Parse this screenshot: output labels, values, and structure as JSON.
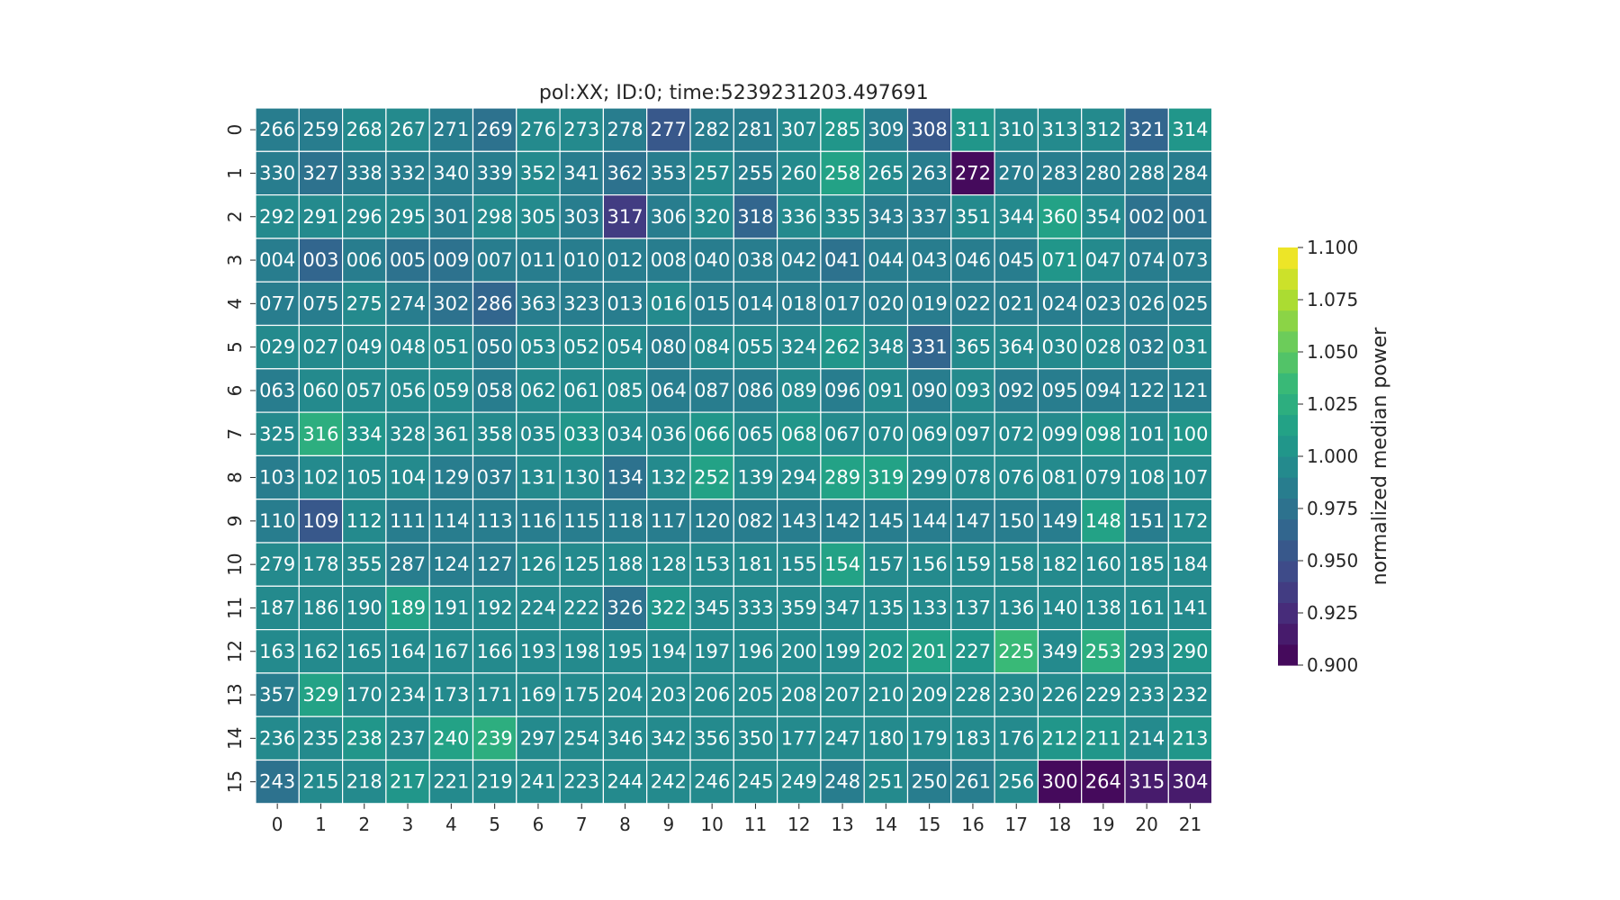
{
  "chart_data": {
    "type": "heatmap",
    "title": "pol:XX; ID:0; time:5239231203.497691",
    "x_tick_labels": [
      "0",
      "1",
      "2",
      "3",
      "4",
      "5",
      "6",
      "7",
      "8",
      "9",
      "10",
      "11",
      "12",
      "13",
      "14",
      "15",
      "16",
      "17",
      "18",
      "19",
      "20",
      "21"
    ],
    "y_tick_labels": [
      "0",
      "1",
      "2",
      "3",
      "4",
      "5",
      "6",
      "7",
      "8",
      "9",
      "10",
      "11",
      "12",
      "13",
      "14",
      "15"
    ],
    "annotations": [
      [
        "266",
        "259",
        "268",
        "267",
        "271",
        "269",
        "276",
        "273",
        "278",
        "277",
        "282",
        "281",
        "307",
        "285",
        "309",
        "308",
        "311",
        "310",
        "313",
        "312",
        "321",
        "314"
      ],
      [
        "330",
        "327",
        "338",
        "332",
        "340",
        "339",
        "352",
        "341",
        "362",
        "353",
        "257",
        "255",
        "260",
        "258",
        "265",
        "263",
        "272",
        "270",
        "283",
        "280",
        "288",
        "284"
      ],
      [
        "292",
        "291",
        "296",
        "295",
        "301",
        "298",
        "305",
        "303",
        "317",
        "306",
        "320",
        "318",
        "336",
        "335",
        "343",
        "337",
        "351",
        "344",
        "360",
        "354",
        "002",
        "001"
      ],
      [
        "004",
        "003",
        "006",
        "005",
        "009",
        "007",
        "011",
        "010",
        "012",
        "008",
        "040",
        "038",
        "042",
        "041",
        "044",
        "043",
        "046",
        "045",
        "071",
        "047",
        "074",
        "073"
      ],
      [
        "077",
        "075",
        "275",
        "274",
        "302",
        "286",
        "363",
        "323",
        "013",
        "016",
        "015",
        "014",
        "018",
        "017",
        "020",
        "019",
        "022",
        "021",
        "024",
        "023",
        "026",
        "025"
      ],
      [
        "029",
        "027",
        "049",
        "048",
        "051",
        "050",
        "053",
        "052",
        "054",
        "080",
        "084",
        "055",
        "324",
        "262",
        "348",
        "331",
        "365",
        "364",
        "030",
        "028",
        "032",
        "031"
      ],
      [
        "063",
        "060",
        "057",
        "056",
        "059",
        "058",
        "062",
        "061",
        "085",
        "064",
        "087",
        "086",
        "089",
        "096",
        "091",
        "090",
        "093",
        "092",
        "095",
        "094",
        "122",
        "121"
      ],
      [
        "325",
        "316",
        "334",
        "328",
        "361",
        "358",
        "035",
        "033",
        "034",
        "036",
        "066",
        "065",
        "068",
        "067",
        "070",
        "069",
        "097",
        "072",
        "099",
        "098",
        "101",
        "100"
      ],
      [
        "103",
        "102",
        "105",
        "104",
        "129",
        "037",
        "131",
        "130",
        "134",
        "132",
        "252",
        "139",
        "294",
        "289",
        "319",
        "299",
        "078",
        "076",
        "081",
        "079",
        "108",
        "107"
      ],
      [
        "110",
        "109",
        "112",
        "111",
        "114",
        "113",
        "116",
        "115",
        "118",
        "117",
        "120",
        "082",
        "143",
        "142",
        "145",
        "144",
        "147",
        "150",
        "149",
        "148",
        "151",
        "172"
      ],
      [
        "279",
        "178",
        "355",
        "287",
        "124",
        "127",
        "126",
        "125",
        "188",
        "128",
        "153",
        "181",
        "155",
        "154",
        "157",
        "156",
        "159",
        "158",
        "182",
        "160",
        "185",
        "184"
      ],
      [
        "187",
        "186",
        "190",
        "189",
        "191",
        "192",
        "224",
        "222",
        "326",
        "322",
        "345",
        "333",
        "359",
        "347",
        "135",
        "133",
        "137",
        "136",
        "140",
        "138",
        "161",
        "141"
      ],
      [
        "163",
        "162",
        "165",
        "164",
        "167",
        "166",
        "193",
        "198",
        "195",
        "194",
        "197",
        "196",
        "200",
        "199",
        "202",
        "201",
        "227",
        "225",
        "349",
        "253",
        "293",
        "290"
      ],
      [
        "357",
        "329",
        "170",
        "234",
        "173",
        "171",
        "169",
        "175",
        "204",
        "203",
        "206",
        "205",
        "208",
        "207",
        "210",
        "209",
        "228",
        "230",
        "226",
        "229",
        "233",
        "232"
      ],
      [
        "236",
        "235",
        "238",
        "237",
        "240",
        "239",
        "297",
        "254",
        "346",
        "342",
        "356",
        "350",
        "177",
        "247",
        "180",
        "179",
        "183",
        "176",
        "212",
        "211",
        "214",
        "213"
      ],
      [
        "243",
        "215",
        "218",
        "217",
        "221",
        "219",
        "241",
        "223",
        "244",
        "242",
        "246",
        "245",
        "249",
        "248",
        "251",
        "250",
        "261",
        "256",
        "300",
        "264",
        "315",
        "304"
      ]
    ],
    "values": [
      [
        0.985,
        0.99,
        0.995,
        1.0,
        0.99,
        0.98,
        0.995,
        0.995,
        0.99,
        0.96,
        0.985,
        0.985,
        0.995,
        1.01,
        0.985,
        0.96,
        1.005,
        0.995,
        0.995,
        0.995,
        0.97,
        1.01
      ],
      [
        0.985,
        0.975,
        0.99,
        0.985,
        0.99,
        0.985,
        0.995,
        0.99,
        0.98,
        0.99,
        0.995,
        0.985,
        0.995,
        1.015,
        0.995,
        0.99,
        0.905,
        0.99,
        0.99,
        0.99,
        0.985,
        0.985
      ],
      [
        1.0,
        1.0,
        1.0,
        0.995,
        0.99,
        0.995,
        1.0,
        0.99,
        0.935,
        0.99,
        1.0,
        0.965,
        0.995,
        0.995,
        0.99,
        0.99,
        0.995,
        0.995,
        1.02,
        1.0,
        0.98,
        0.975
      ],
      [
        0.99,
        0.97,
        0.99,
        0.98,
        0.98,
        0.985,
        0.99,
        0.99,
        0.99,
        0.985,
        0.99,
        0.99,
        0.99,
        0.975,
        0.99,
        0.99,
        0.99,
        0.99,
        1.01,
        0.995,
        0.99,
        0.99
      ],
      [
        0.99,
        0.99,
        0.995,
        0.99,
        0.98,
        0.97,
        0.99,
        0.99,
        0.99,
        0.995,
        0.99,
        0.99,
        0.99,
        0.99,
        0.99,
        0.99,
        0.99,
        0.99,
        0.99,
        0.99,
        0.99,
        0.99
      ],
      [
        0.995,
        0.995,
        0.995,
        0.995,
        0.995,
        0.99,
        1.0,
        0.995,
        0.995,
        0.99,
        0.995,
        0.995,
        1.0,
        1.005,
        1.0,
        0.97,
        1.0,
        0.995,
        0.995,
        0.995,
        0.99,
        0.995
      ],
      [
        0.99,
        0.995,
        0.995,
        0.995,
        0.995,
        0.99,
        0.995,
        0.995,
        0.995,
        0.99,
        0.99,
        0.99,
        0.995,
        0.99,
        0.995,
        0.99,
        0.995,
        0.99,
        0.99,
        0.985,
        0.99,
        0.99
      ],
      [
        1.0,
        1.03,
        1.005,
        1.0,
        1.0,
        1.0,
        1.0,
        1.005,
        1.0,
        1.0,
        1.005,
        1.0,
        1.005,
        0.995,
        1.0,
        1.0,
        1.0,
        1.0,
        1.0,
        1.005,
        1.0,
        1.005
      ],
      [
        0.99,
        0.995,
        0.995,
        0.995,
        0.99,
        0.99,
        0.995,
        0.995,
        0.975,
        0.995,
        1.02,
        0.995,
        0.995,
        1.015,
        1.02,
        0.995,
        0.995,
        0.995,
        0.995,
        0.995,
        0.995,
        1.0
      ],
      [
        0.99,
        0.96,
        0.995,
        0.99,
        0.99,
        0.99,
        0.99,
        0.99,
        0.99,
        0.99,
        0.99,
        0.99,
        0.99,
        0.99,
        0.99,
        0.99,
        0.985,
        0.99,
        0.99,
        1.015,
        0.99,
        0.995
      ],
      [
        0.995,
        1.0,
        0.995,
        0.99,
        0.99,
        0.99,
        0.995,
        0.995,
        1.0,
        0.995,
        1.0,
        0.995,
        0.995,
        1.015,
        1.0,
        1.0,
        1.0,
        1.0,
        1.0,
        1.0,
        1.0,
        1.0
      ],
      [
        0.995,
        0.995,
        0.995,
        1.02,
        0.995,
        0.995,
        0.995,
        0.995,
        0.975,
        1.005,
        0.995,
        0.995,
        0.995,
        0.995,
        0.995,
        0.995,
        0.995,
        0.995,
        0.995,
        0.995,
        0.995,
        0.995
      ],
      [
        0.995,
        0.995,
        0.995,
        0.995,
        0.995,
        0.995,
        1.0,
        1.0,
        1.0,
        1.0,
        1.0,
        1.0,
        1.0,
        1.0,
        1.005,
        1.015,
        1.005,
        1.04,
        1.0,
        1.03,
        1.0,
        1.005
      ],
      [
        0.99,
        1.015,
        1.0,
        1.0,
        0.995,
        0.995,
        0.995,
        0.995,
        0.995,
        0.995,
        0.995,
        0.995,
        0.995,
        0.995,
        0.995,
        0.995,
        0.995,
        0.995,
        0.995,
        0.995,
        0.995,
        0.995
      ],
      [
        0.995,
        0.995,
        1.01,
        0.995,
        1.015,
        1.025,
        1.0,
        0.995,
        0.995,
        1.0,
        1.0,
        1.0,
        0.995,
        0.995,
        1.0,
        0.995,
        0.995,
        0.995,
        1.01,
        1.005,
        1.0,
        1.005
      ],
      [
        0.975,
        1.0,
        0.995,
        1.005,
        0.995,
        0.995,
        1.0,
        0.995,
        0.995,
        1.0,
        0.995,
        0.995,
        0.995,
        0.99,
        0.995,
        0.985,
        0.985,
        0.995,
        0.9,
        0.9,
        0.91,
        0.91
      ]
    ],
    "colorbar": {
      "label": "normalized median power",
      "vmin": 0.9,
      "vmax": 1.1,
      "ticks": [
        "0.900",
        "0.925",
        "0.950",
        "0.975",
        "1.000",
        "1.025",
        "1.050",
        "1.075",
        "1.100"
      ],
      "colormap": "viridis",
      "levels": 20
    },
    "grid": false,
    "cell_border_color": "#ffffff"
  }
}
